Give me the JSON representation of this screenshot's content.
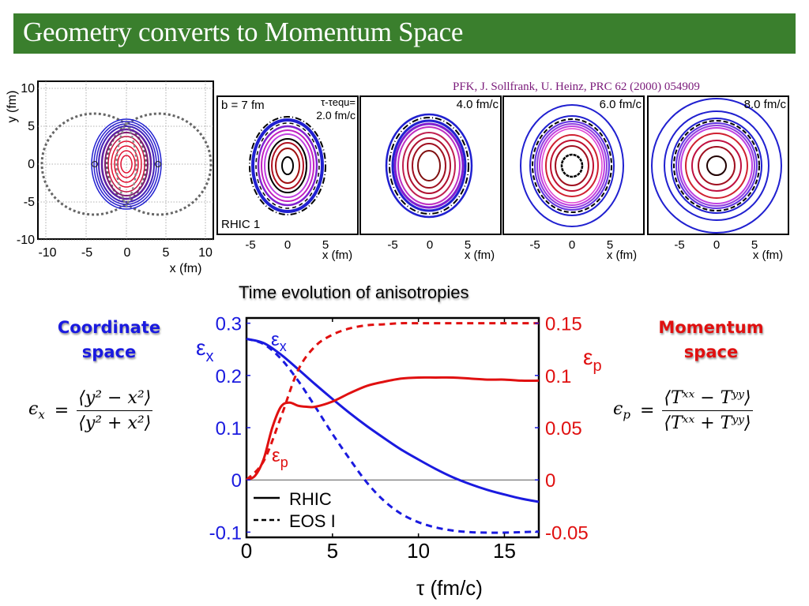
{
  "slide": {
    "title": "Geometry converts to Momentum Space",
    "citation": "PFK, J. Sollfrank, U. Heinz, PRC 62 (2000) 054909",
    "colors": {
      "title_bg": "#3a7f2d",
      "blue": "#1a1adf",
      "red": "#e01010",
      "citation": "#7a1a7a"
    }
  },
  "left_panel": {
    "ylabel": "y (fm)",
    "xlabel": "x (fm)",
    "xticks": [
      "-10",
      "-5",
      "0",
      "5",
      "10"
    ],
    "yticks": [
      "10",
      "5",
      "0",
      "-5",
      "-10"
    ]
  },
  "snapshots": {
    "xlabel": "x (fm)",
    "xticks": [
      "-5",
      "0",
      "5"
    ],
    "panels": [
      {
        "label_top_left": "b = 7 fm",
        "time_label_line1": "τ-τequ=",
        "time_label_line2": "2.0 fm/c",
        "label_bottom_left": "RHIC 1"
      },
      {
        "time_label": "4.0 fm/c"
      },
      {
        "time_label": "6.0 fm/c"
      },
      {
        "time_label": "8.0 fm/c"
      }
    ]
  },
  "coordinate": {
    "heading_line1": "Coordinate",
    "heading_line2": "space",
    "lhs": "ϵ",
    "lhs_sub": "x",
    "eq": "=",
    "numerator": "⟨y² − x²⟩",
    "denominator": "⟨y² + x²⟩"
  },
  "momentum": {
    "heading_line1": "Momentum",
    "heading_line2": "space",
    "lhs": "ϵ",
    "lhs_sub": "p",
    "eq": "=",
    "numerator": "⟨Tˣˣ − Tʸʸ⟩",
    "denominator": "⟨Tˣˣ + Tʸʸ⟩"
  },
  "chart_data": {
    "type": "line",
    "title": "Time evolution of anisotropies",
    "xlabel": "τ (fm/c)",
    "ylabel_left": "εx",
    "ylabel_right": "εp",
    "xlim": [
      0,
      17
    ],
    "ylim_left": [
      -0.11,
      0.31
    ],
    "ylim_right": [
      -0.055,
      0.155
    ],
    "xticks": [
      "0",
      "5",
      "10",
      "15"
    ],
    "yticks_left": [
      "0.3",
      "0.2",
      "0.1",
      "0",
      "-0.1"
    ],
    "yticks_right": [
      "0.15",
      "0.1",
      "0.05",
      "0",
      "-0.05"
    ],
    "ytick_values_left": [
      0.3,
      0.2,
      0.1,
      0,
      -0.1
    ],
    "ytick_values_right": [
      0.15,
      0.1,
      0.05,
      0,
      -0.05
    ],
    "grid": false,
    "legend": {
      "placement": "bottom-left",
      "entries": [
        {
          "label": "RHIC",
          "style": "solid"
        },
        {
          "label": "EOS I",
          "style": "dashed"
        }
      ]
    },
    "annotations": [
      {
        "text": "εx",
        "color": "#1a1adf"
      },
      {
        "text": "εp",
        "color": "#e01010"
      }
    ],
    "series": [
      {
        "name": "εx RHIC",
        "axis": "left",
        "style": "solid",
        "color": "#1a1adf",
        "x": [
          0,
          1,
          2,
          3,
          4,
          5,
          6,
          7,
          8,
          9,
          10,
          11,
          12,
          13,
          14,
          15,
          16,
          17
        ],
        "y": [
          0.27,
          0.262,
          0.24,
          0.212,
          0.183,
          0.155,
          0.128,
          0.103,
          0.08,
          0.058,
          0.039,
          0.021,
          0.005,
          -0.008,
          -0.019,
          -0.028,
          -0.036,
          -0.042
        ]
      },
      {
        "name": "εx EOS I",
        "axis": "left",
        "style": "dashed",
        "color": "#1a1adf",
        "x": [
          0,
          1,
          2,
          3,
          4,
          5,
          6,
          7,
          8,
          9,
          10,
          11,
          12,
          13,
          14,
          15,
          16,
          17
        ],
        "y": [
          0.27,
          0.26,
          0.232,
          0.19,
          0.14,
          0.088,
          0.04,
          -0.005,
          -0.04,
          -0.065,
          -0.081,
          -0.091,
          -0.097,
          -0.1,
          -0.101,
          -0.101,
          -0.1,
          -0.099
        ]
      },
      {
        "name": "εp RHIC",
        "axis": "right",
        "style": "solid",
        "color": "#e01010",
        "x": [
          0,
          0.5,
          1,
          1.5,
          2,
          2.5,
          3,
          3.5,
          4,
          5,
          6,
          7,
          8,
          9,
          10,
          11,
          12,
          13,
          14,
          15,
          16,
          17
        ],
        "y": [
          0,
          0.004,
          0.02,
          0.05,
          0.07,
          0.074,
          0.071,
          0.07,
          0.07,
          0.075,
          0.083,
          0.09,
          0.094,
          0.097,
          0.098,
          0.098,
          0.098,
          0.097,
          0.096,
          0.096,
          0.095,
          0.095
        ]
      },
      {
        "name": "εp EOS I",
        "axis": "right",
        "style": "dashed",
        "color": "#e01010",
        "x": [
          0,
          1,
          2,
          3,
          4,
          5,
          6,
          7,
          8,
          9,
          10,
          12,
          14,
          17
        ],
        "y": [
          0,
          0.018,
          0.06,
          0.105,
          0.128,
          0.139,
          0.145,
          0.148,
          0.149,
          0.15,
          0.15,
          0.15,
          0.15,
          0.15
        ]
      }
    ]
  }
}
